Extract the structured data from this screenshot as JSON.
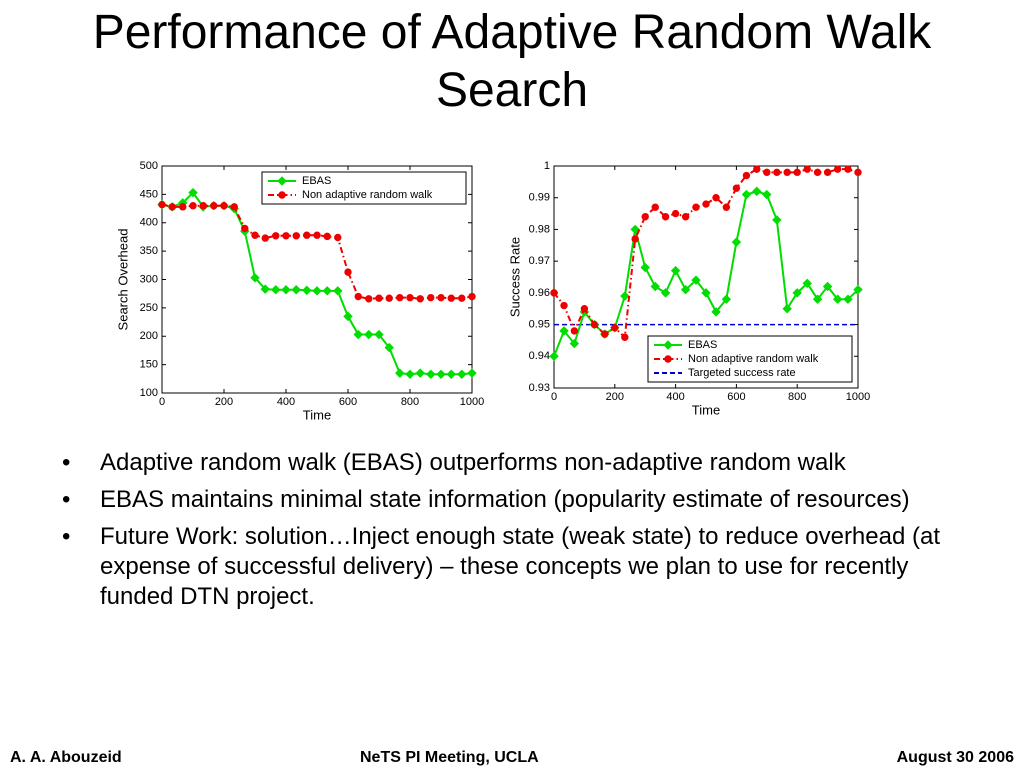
{
  "slide": {
    "title": "Performance of Adaptive Random Walk Search",
    "bullets": [
      "Adaptive random walk (EBAS) outperforms non-adaptive random walk",
      "EBAS maintains minimal state information (popularity estimate of resources)",
      "Future Work: solution…Inject enough state (weak state) to reduce overhead (at expense of successful delivery) – these concepts we plan to use for recently funded DTN project."
    ],
    "footer": {
      "left": "A. A. Abouzeid",
      "center": "NeTS PI Meeting, UCLA",
      "right": "August 30 2006"
    }
  },
  "chart_data": [
    {
      "type": "line",
      "xlabel": "Time",
      "ylabel": "Search Overhead",
      "x": [
        0,
        33,
        67,
        100,
        133,
        167,
        200,
        233,
        267,
        300,
        333,
        367,
        400,
        433,
        467,
        500,
        533,
        567,
        600,
        633,
        667,
        700,
        733,
        767,
        800,
        833,
        867,
        900,
        933,
        967,
        1000
      ],
      "series": [
        {
          "name": "EBAS",
          "color": "#00dd00",
          "marker": "diamond",
          "dash": "solid",
          "values": [
            432,
            428,
            435,
            453,
            428,
            430,
            430,
            425,
            385,
            303,
            283,
            282,
            282,
            282,
            281,
            280,
            280,
            280,
            235,
            203,
            203,
            203,
            180,
            135,
            133,
            135,
            133,
            133,
            133,
            133,
            135
          ]
        },
        {
          "name": "Non adaptive random walk",
          "color": "#ee0000",
          "marker": "circle",
          "dash": "dashdot",
          "values": [
            432,
            428,
            428,
            430,
            430,
            430,
            430,
            428,
            390,
            378,
            373,
            377,
            377,
            377,
            378,
            378,
            376,
            374,
            313,
            270,
            266,
            267,
            267,
            268,
            268,
            266,
            268,
            268,
            267,
            267,
            270
          ]
        }
      ],
      "xlim": [
        0,
        1000
      ],
      "xticks": [
        0,
        200,
        400,
        600,
        800,
        1000
      ],
      "ylim": [
        100,
        500
      ],
      "yticks": [
        100,
        150,
        200,
        250,
        300,
        350,
        400,
        450,
        500
      ],
      "legend": "top-right"
    },
    {
      "type": "line",
      "xlabel": "Time",
      "ylabel": "Success Rate",
      "x": [
        0,
        33,
        67,
        100,
        133,
        167,
        200,
        233,
        267,
        300,
        333,
        367,
        400,
        433,
        467,
        500,
        533,
        567,
        600,
        633,
        667,
        700,
        733,
        767,
        800,
        833,
        867,
        900,
        933,
        967,
        1000
      ],
      "series": [
        {
          "name": "EBAS",
          "color": "#00dd00",
          "marker": "diamond",
          "dash": "solid",
          "values": [
            0.94,
            0.948,
            0.944,
            0.954,
            0.95,
            0.947,
            0.949,
            0.959,
            0.98,
            0.968,
            0.962,
            0.96,
            0.967,
            0.961,
            0.964,
            0.96,
            0.954,
            0.958,
            0.976,
            0.991,
            0.992,
            0.991,
            0.983,
            0.955,
            0.96,
            0.963,
            0.958,
            0.962,
            0.958,
            0.958,
            0.961
          ]
        },
        {
          "name": "Non adaptive random walk",
          "color": "#ee0000",
          "marker": "circle",
          "dash": "dashdot",
          "values": [
            0.96,
            0.956,
            0.948,
            0.955,
            0.95,
            0.947,
            0.949,
            0.946,
            0.977,
            0.984,
            0.987,
            0.984,
            0.985,
            0.984,
            0.987,
            0.988,
            0.99,
            0.987,
            0.993,
            0.997,
            0.999,
            0.998,
            0.998,
            0.998,
            0.998,
            0.999,
            0.998,
            0.998,
            0.999,
            0.999,
            0.998
          ]
        }
      ],
      "reference_line": {
        "name": "Targeted success rate",
        "value": 0.95,
        "color": "#0000cc",
        "dash": "dashed"
      },
      "xlim": [
        0,
        1000
      ],
      "xticks": [
        0,
        200,
        400,
        600,
        800,
        1000
      ],
      "ylim": [
        0.93,
        1
      ],
      "yticks": [
        0.93,
        0.94,
        0.95,
        0.96,
        0.97,
        0.98,
        0.99,
        1
      ],
      "legend": "bottom-right"
    }
  ]
}
